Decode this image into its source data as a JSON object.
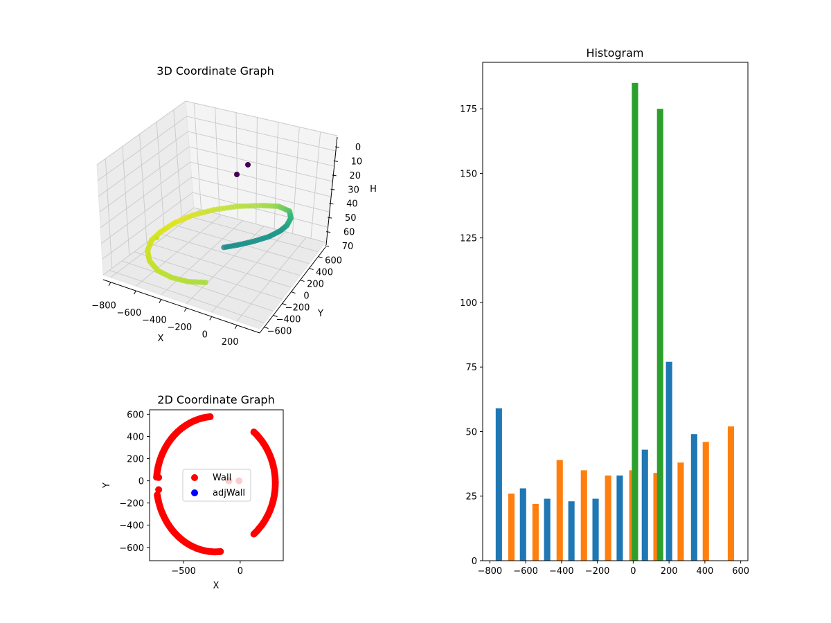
{
  "chart_data": [
    {
      "type": "scatter3d",
      "title": "3D Coordinate Graph",
      "xlabel": "X",
      "ylabel": "Y",
      "zlabel": "H",
      "x_ticks": [
        "−800",
        "−600",
        "−400",
        "−200",
        "0",
        "200"
      ],
      "y_ticks": [
        "−600",
        "−400",
        "−200",
        "0",
        "200",
        "400",
        "600"
      ],
      "z_ticks": [
        "0",
        "10",
        "20",
        "30",
        "40",
        "50",
        "60",
        "70"
      ],
      "xlim": [
        -800,
        300
      ],
      "ylim": [
        -700,
        600
      ],
      "zlim": [
        0,
        70
      ],
      "z_inverted": true,
      "grid": true,
      "colormap": "viridis"
    },
    {
      "type": "scatter",
      "title": "2D Coordinate Graph",
      "xlabel": "X",
      "ylabel": "Y",
      "x_ticks": [
        "−500",
        "0"
      ],
      "y_ticks": [
        "600",
        "400",
        "200",
        "0",
        "−200",
        "−400",
        "−600"
      ],
      "xlim": [
        -800,
        380
      ],
      "ylim": [
        -720,
        640
      ],
      "legend": {
        "placement": "center",
        "entries": [
          "Wall",
          "adjWall"
        ]
      },
      "series": [
        {
          "name": "Wall",
          "color": "#ff0000"
        },
        {
          "name": "adjWall",
          "color": "#0000ff"
        }
      ]
    },
    {
      "type": "bar",
      "title": "Histogram",
      "x_ticks": [
        "−800",
        "−600",
        "−400",
        "−200",
        "0",
        "200",
        "400",
        "600"
      ],
      "y_ticks": [
        "0",
        "25",
        "50",
        "75",
        "100",
        "125",
        "150",
        "175"
      ],
      "xlim": [
        -840,
        640
      ],
      "ylim": [
        0,
        193
      ],
      "series": [
        {
          "color": "#1f77b4",
          "x": [
            -750,
            -615,
            -480,
            -345,
            -210,
            -75,
            65,
            200,
            340
          ],
          "values": [
            59,
            28,
            24,
            23,
            24,
            33,
            43,
            77,
            49
          ]
        },
        {
          "color": "#ff7f0e",
          "x": [
            -680,
            -545,
            -410,
            -275,
            -140,
            -5,
            130,
            265,
            405,
            545
          ],
          "values": [
            26,
            22,
            39,
            35,
            33,
            35,
            34,
            38,
            46,
            52
          ]
        },
        {
          "color": "#2ca02c",
          "x": [
            10,
            150
          ],
          "values": [
            185,
            175
          ]
        }
      ]
    }
  ]
}
